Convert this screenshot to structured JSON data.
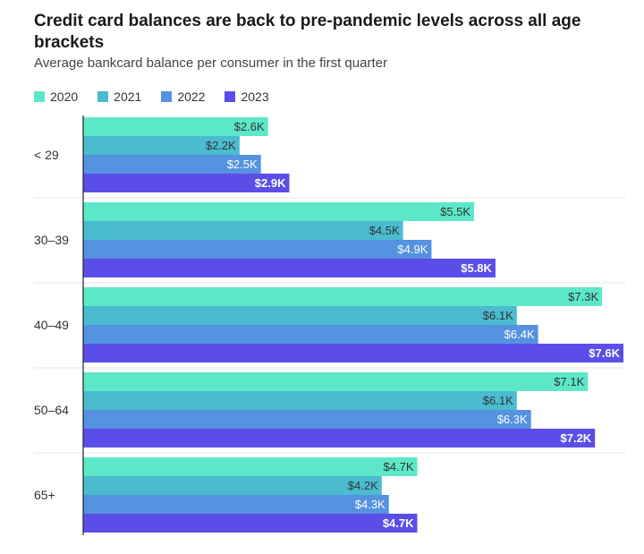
{
  "chart_data": {
    "type": "bar",
    "orientation": "horizontal",
    "title": "Credit card balances are back to pre-pandemic levels across all age brackets",
    "subtitle": "Average bankcard balance per consumer in the first quarter",
    "legend_position": "top-left",
    "categories": [
      "< 29",
      "30–39",
      "40–49",
      "50–64",
      "65+"
    ],
    "series": [
      {
        "name": "2020",
        "color": "#5ce8c8",
        "values": [
          2.6,
          5.5,
          7.3,
          7.1,
          4.7
        ],
        "labels": [
          "$2.6K",
          "$5.5K",
          "$7.3K",
          "$7.1K",
          "$4.7K"
        ]
      },
      {
        "name": "2021",
        "color": "#4bbcd0",
        "values": [
          2.2,
          4.5,
          6.1,
          6.1,
          4.2
        ],
        "labels": [
          "$2.2K",
          "$4.5K",
          "$6.1K",
          "$6.1K",
          "$4.2K"
        ]
      },
      {
        "name": "2022",
        "color": "#5592e0",
        "values": [
          2.5,
          4.9,
          6.4,
          6.3,
          4.3
        ],
        "labels": [
          "$2.5K",
          "$4.9K",
          "$6.4K",
          "$6.3K",
          "$4.3K"
        ]
      },
      {
        "name": "2023",
        "color": "#5b4ee8",
        "values": [
          2.9,
          5.8,
          7.6,
          7.2,
          4.7
        ],
        "labels": [
          "$2.9K",
          "$5.8K",
          "$7.6K",
          "$7.2K",
          "$4.7K"
        ]
      }
    ],
    "xlim": [
      0,
      7.6
    ],
    "grid": false
  }
}
